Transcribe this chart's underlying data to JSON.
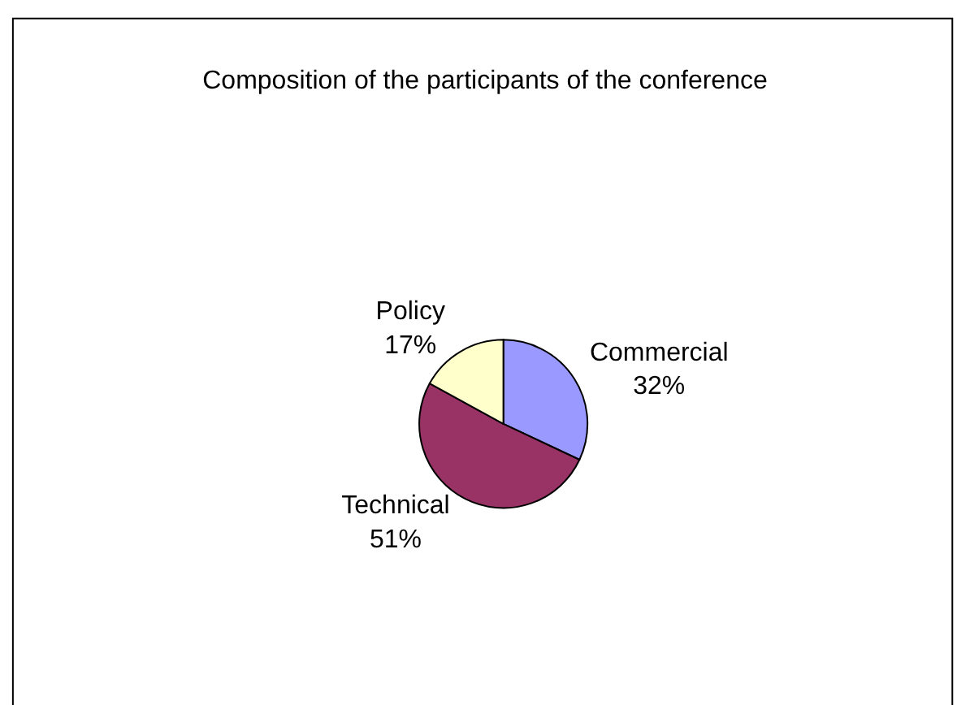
{
  "chart_data": {
    "type": "pie",
    "title": "Composition of the participants of the conference",
    "categories": [
      "Commercial",
      "Technical",
      "Policy"
    ],
    "values": [
      32,
      51,
      17
    ],
    "value_labels": [
      "32%",
      "51%",
      "17%"
    ],
    "colors": [
      "#9999ff",
      "#993366",
      "#ffffcc"
    ],
    "legend": false
  }
}
